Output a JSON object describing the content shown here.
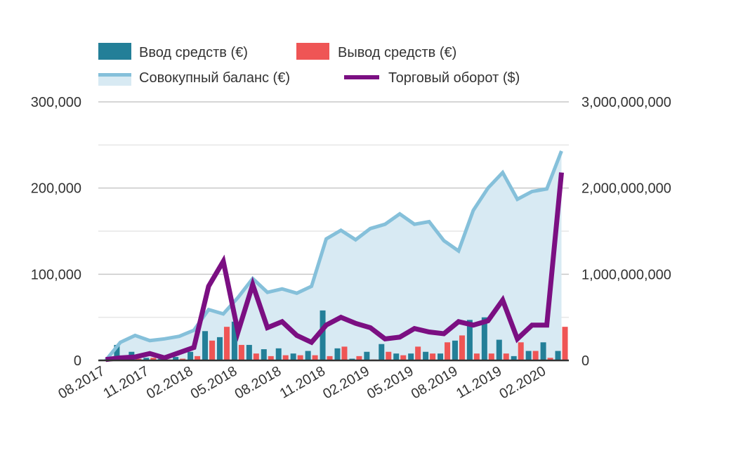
{
  "chart_data": {
    "type": "bar+line",
    "title": "",
    "legend": {
      "placement": "top-left",
      "items": [
        {
          "key": "deposits",
          "label": "Ввод средств (€)"
        },
        {
          "key": "withdrawals",
          "label": "Вывод средств (€)"
        },
        {
          "key": "balance",
          "label": "Совокупный баланс (€)"
        },
        {
          "key": "turnover",
          "label": "Торговый оборот ($)"
        }
      ]
    },
    "categories": [
      "08.2017",
      "09.2017",
      "10.2017",
      "11.2017",
      "12.2017",
      "01.2018",
      "02.2018",
      "03.2018",
      "04.2018",
      "05.2018",
      "06.2018",
      "07.2018",
      "08.2018",
      "09.2018",
      "10.2018",
      "11.2018",
      "12.2018",
      "01.2019",
      "02.2019",
      "03.2019",
      "04.2019",
      "05.2019",
      "06.2019",
      "07.2019",
      "08.2019",
      "09.2019",
      "10.2019",
      "11.2019",
      "12.2019",
      "01.2020",
      "02.2020",
      "03.2020"
    ],
    "x_tick_labels": [
      "08.2017",
      "11.2017",
      "02.2018",
      "05.2018",
      "08.2018",
      "11.2018",
      "02.2019",
      "05.2019",
      "08.2019",
      "11.2019",
      "02.2020"
    ],
    "y_left": {
      "range": [
        0,
        300000
      ],
      "ticks": [
        0,
        100000,
        200000,
        300000
      ],
      "tick_labels": [
        "0",
        "100,000",
        "200,000",
        "300,000"
      ],
      "minor_grid": [
        50000,
        150000,
        250000
      ]
    },
    "y_right": {
      "range": [
        0,
        3000000000
      ],
      "ticks": [
        0,
        1000000000,
        2000000000,
        3000000000
      ],
      "tick_labels": [
        "0",
        "1,000,000,000",
        "2,000,000,000",
        "3,000,000,000"
      ]
    },
    "grid": true,
    "series": [
      {
        "key": "deposits",
        "name": "Ввод средств (€)",
        "type": "bar",
        "axis": "left",
        "color": "#237f98",
        "values": [
          1000,
          18000,
          10000,
          3000,
          2000,
          4000,
          10000,
          34000,
          27000,
          45000,
          18000,
          13000,
          14000,
          8000,
          11000,
          58000,
          14000,
          2000,
          10000,
          19000,
          8000,
          8000,
          10000,
          8000,
          23000,
          47000,
          50000,
          24000,
          5000,
          11000,
          21000,
          11000
        ]
      },
      {
        "key": "withdrawals",
        "name": "Вывод средств (€)",
        "type": "bar",
        "axis": "left",
        "color": "#ef5555",
        "values": [
          0,
          2000,
          2000,
          3000,
          1000,
          2000,
          5000,
          23000,
          39000,
          18000,
          8000,
          5000,
          6000,
          6000,
          6000,
          5000,
          16000,
          5000,
          1000,
          10000,
          6000,
          16000,
          8000,
          21000,
          29000,
          8000,
          8000,
          8000,
          21000,
          11000,
          3000,
          39000
        ]
      },
      {
        "key": "balance",
        "name": "Совокупный баланс (€)",
        "type": "area",
        "axis": "left",
        "color": "#85c0da",
        "fill": "#d8eaf3",
        "values": [
          0,
          21000,
          29000,
          23000,
          25000,
          28000,
          35000,
          59000,
          54000,
          73000,
          95000,
          79000,
          83000,
          78000,
          86000,
          141000,
          151000,
          140000,
          153000,
          158000,
          170000,
          158000,
          161000,
          139000,
          127000,
          174000,
          200000,
          218000,
          187000,
          196000,
          199000,
          243000
        ]
      },
      {
        "key": "turnover",
        "name": "Торговый оборот ($)",
        "type": "line",
        "axis": "right",
        "color": "#7b0f82",
        "values": [
          10000000,
          30000000,
          40000000,
          80000000,
          30000000,
          90000000,
          150000000,
          860000000,
          1150000000,
          330000000,
          880000000,
          380000000,
          450000000,
          290000000,
          210000000,
          410000000,
          500000000,
          430000000,
          380000000,
          250000000,
          270000000,
          370000000,
          330000000,
          310000000,
          450000000,
          410000000,
          460000000,
          700000000,
          250000000,
          410000000,
          410000000,
          2180000000
        ]
      }
    ]
  }
}
